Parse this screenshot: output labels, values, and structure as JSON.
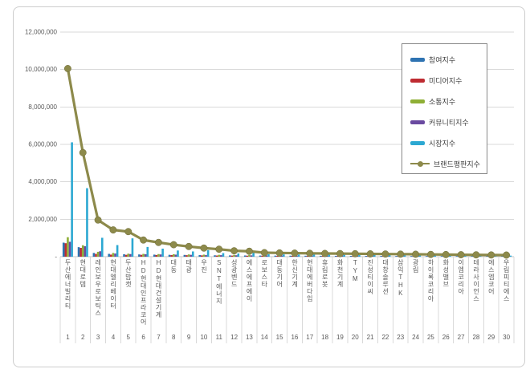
{
  "chart_data": {
    "type": "bar",
    "title": "",
    "xlabel": "",
    "ylabel": "",
    "ylim": [
      0,
      12000000
    ],
    "grid": true,
    "legend_position": "top-right",
    "y_ticks": [
      {
        "value": 12000000,
        "label": "12,000,000"
      },
      {
        "value": 10000000,
        "label": "10,000,000"
      },
      {
        "value": 8000000,
        "label": "8,000,000"
      },
      {
        "value": 6000000,
        "label": "6,000,000"
      },
      {
        "value": 4000000,
        "label": "4,000,000"
      },
      {
        "value": 2000000,
        "label": "2,000,000"
      },
      {
        "value": 0,
        "label": "-"
      }
    ],
    "categories": [
      "두산에너빌리티",
      "현대로템",
      "레인보우로보틱스",
      "현대엘리베이터",
      "두산밥캣",
      "HD현대인프라코어",
      "HD현대건설기계",
      "대동",
      "태광",
      "우진",
      "SNT에너지",
      "성광벤드",
      "에스에프에이",
      "로보스타",
      "대동기어",
      "한신기계",
      "현대에버다임",
      "휴림로봇",
      "화천기계",
      "TYM",
      "진성티이씨",
      "대창솔루션",
      "삼익THK",
      "광림",
      "하이록코리아",
      "화성밸브",
      "이엠코리아",
      "테라사이언스",
      "에스엠코어",
      "우림피티에스"
    ],
    "ranks": [
      "1",
      "2",
      "3",
      "4",
      "5",
      "6",
      "7",
      "8",
      "9",
      "10",
      "11",
      "12",
      "13",
      "14",
      "15",
      "16",
      "17",
      "18",
      "19",
      "20",
      "21",
      "22",
      "23",
      "24",
      "25",
      "26",
      "27",
      "28",
      "29",
      "30"
    ],
    "series": [
      {
        "name": "참여지수",
        "type": "bar",
        "color": "#2E73B2",
        "values": [
          750000,
          510000,
          200000,
          150000,
          130000,
          120000,
          110000,
          100000,
          95000,
          85000,
          75000,
          70000,
          65000,
          60000,
          56000,
          53000,
          50000,
          48000,
          46000,
          44000,
          42000,
          40000,
          38000,
          36000,
          34000,
          33000,
          31000,
          30000,
          29000,
          28000
        ]
      },
      {
        "name": "미디어지수",
        "type": "bar",
        "color": "#BE2B31",
        "values": [
          720000,
          470000,
          150000,
          110000,
          100000,
          100000,
          90000,
          85000,
          80000,
          70000,
          62000,
          58000,
          54000,
          50000,
          47000,
          44000,
          42000,
          40000,
          38000,
          36000,
          35000,
          33000,
          32000,
          30000,
          29000,
          28000,
          26000,
          25000,
          24000,
          23000
        ]
      },
      {
        "name": "소통지수",
        "type": "bar",
        "color": "#8FAF36",
        "values": [
          1040000,
          610000,
          260000,
          200000,
          160000,
          150000,
          140000,
          130000,
          120000,
          110000,
          100000,
          95000,
          90000,
          85000,
          80000,
          76000,
          72000,
          68000,
          65000,
          62000,
          59000,
          56000,
          54000,
          51000,
          49000,
          47000,
          45000,
          43000,
          41000,
          39000
        ]
      },
      {
        "name": "커뮤니티지수",
        "type": "bar",
        "color": "#6A4AA0",
        "values": [
          795000,
          560000,
          290000,
          170000,
          140000,
          130000,
          120000,
          110000,
          100000,
          90000,
          82000,
          76000,
          72000,
          66000,
          62000,
          58000,
          55000,
          52000,
          50000,
          48000,
          46000,
          44000,
          42000,
          40000,
          38000,
          36000,
          35000,
          33000,
          32000,
          31000
        ]
      },
      {
        "name": "시장지수",
        "type": "bar",
        "color": "#2CA8D2",
        "values": [
          6110000,
          3660000,
          1010000,
          620000,
          980000,
          520000,
          430000,
          330000,
          280000,
          350000,
          190000,
          170000,
          210000,
          130000,
          120000,
          115000,
          110000,
          105000,
          100000,
          95000,
          90000,
          86000,
          82000,
          78000,
          74000,
          70000,
          67000,
          64000,
          61000,
          58000
        ]
      },
      {
        "name": "브랜드평판지수",
        "type": "line",
        "color": "#8D8A4B",
        "values": [
          10050000,
          5560000,
          1960000,
          1430000,
          1340000,
          890000,
          760000,
          640000,
          545000,
          460000,
          400000,
          315000,
          290000,
          215000,
          200000,
          190000,
          180000,
          172000,
          165000,
          158000,
          150000,
          143000,
          136000,
          130000,
          120000,
          112000,
          105000,
          98000,
          92000,
          86000
        ]
      }
    ],
    "colors": {
      "gridline": "#d9d9d9",
      "axis_line": "#c6c6c6",
      "tick_text": "#595959",
      "frame_border": "#cdcdcd",
      "legend_border": "#888888"
    }
  }
}
